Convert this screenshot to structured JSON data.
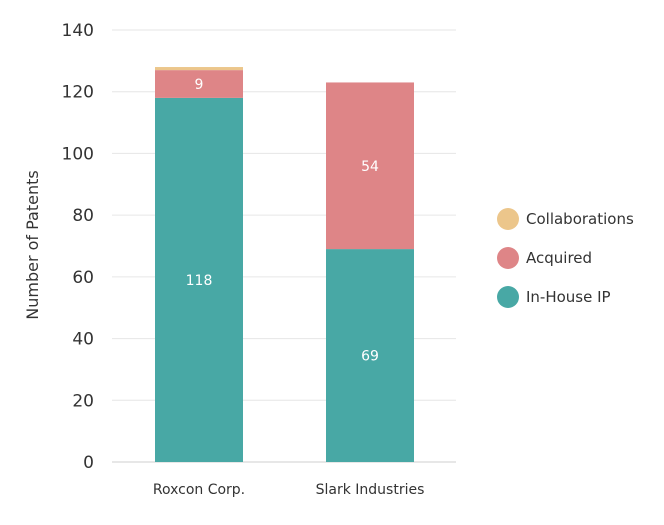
{
  "chart_data": {
    "type": "bar",
    "stacked": true,
    "categories": [
      "Roxcon Corp.",
      "Slark Industries"
    ],
    "series": [
      {
        "name": "In-House IP",
        "values": [
          118,
          69
        ],
        "color": "#48a8a5",
        "labels": [
          "118",
          "69"
        ]
      },
      {
        "name": "Acquired",
        "values": [
          9,
          54
        ],
        "color": "#de8587",
        "labels": [
          "9",
          "54"
        ]
      },
      {
        "name": "Collaborations",
        "values": [
          1,
          0
        ],
        "color": "#ecc68b",
        "labels": [
          "",
          ""
        ]
      }
    ],
    "ylabel": "Number of Patents",
    "xlabel": "",
    "ylim": [
      0,
      140
    ],
    "yticks": [
      "0",
      "20",
      "40",
      "60",
      "80",
      "100",
      "120",
      "140"
    ],
    "grid": true,
    "legend_position": "right"
  }
}
